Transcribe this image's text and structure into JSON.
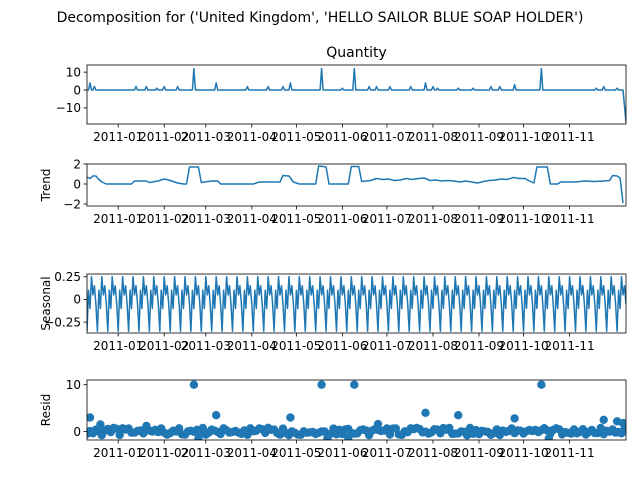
{
  "chart_data": {
    "type": "line",
    "title": "Decomposition for ('United Kingdom', 'HELLO SAILOR BLUE SOAP HOLDER')",
    "x_range": [
      "2010-12-11",
      "2011-12-09"
    ],
    "x_ticks": [
      "2011-01",
      "2011-02",
      "2011-03",
      "2011-04",
      "2011-05",
      "2011-06",
      "2011-07",
      "2011-08",
      "2011-09",
      "2011-10",
      "2011-11"
    ],
    "panels": [
      {
        "name": "quantity",
        "subtitle": "Quantity",
        "ylabel": "",
        "kind": "line",
        "ylim": [
          -19,
          14
        ],
        "yticks": [
          10,
          0,
          -10
        ],
        "baseline": 0,
        "spikes": [
          {
            "date": "2010-12-13",
            "value": 4
          },
          {
            "date": "2010-12-16",
            "value": 2
          },
          {
            "date": "2011-01-13",
            "value": 2
          },
          {
            "date": "2011-01-20",
            "value": 2
          },
          {
            "date": "2011-01-27",
            "value": 1
          },
          {
            "date": "2011-02-01",
            "value": 2
          },
          {
            "date": "2011-02-10",
            "value": 2
          },
          {
            "date": "2011-02-21",
            "value": 12
          },
          {
            "date": "2011-03-08",
            "value": 4
          },
          {
            "date": "2011-03-29",
            "value": 2
          },
          {
            "date": "2011-04-12",
            "value": 2
          },
          {
            "date": "2011-04-22",
            "value": 2
          },
          {
            "date": "2011-04-27",
            "value": 4
          },
          {
            "date": "2011-05-18",
            "value": 12
          },
          {
            "date": "2011-06-01",
            "value": 1
          },
          {
            "date": "2011-06-09",
            "value": 12
          },
          {
            "date": "2011-06-19",
            "value": 2
          },
          {
            "date": "2011-06-24",
            "value": 2
          },
          {
            "date": "2011-07-03",
            "value": 2
          },
          {
            "date": "2011-07-17",
            "value": 2
          },
          {
            "date": "2011-07-27",
            "value": 4
          },
          {
            "date": "2011-08-01",
            "value": 2
          },
          {
            "date": "2011-08-04",
            "value": 1
          },
          {
            "date": "2011-08-18",
            "value": 1
          },
          {
            "date": "2011-08-28",
            "value": 1
          },
          {
            "date": "2011-09-09",
            "value": 2
          },
          {
            "date": "2011-09-15",
            "value": 2
          },
          {
            "date": "2011-09-25",
            "value": 3
          },
          {
            "date": "2011-10-13",
            "value": 12
          },
          {
            "date": "2011-11-19",
            "value": 1
          },
          {
            "date": "2011-11-24",
            "value": 2
          },
          {
            "date": "2011-12-03",
            "value": 1
          }
        ],
        "end_value": -18
      },
      {
        "name": "trend",
        "subtitle": "",
        "ylabel": "Trend",
        "kind": "line",
        "ylim": [
          -2.2,
          2.0
        ],
        "yticks": [
          2,
          0,
          -2
        ],
        "points": [
          [
            "2010-12-11",
            0.7
          ],
          [
            "2010-12-13",
            0.55
          ],
          [
            "2010-12-15",
            0.8
          ],
          [
            "2010-12-17",
            0.8
          ],
          [
            "2010-12-19",
            0.45
          ],
          [
            "2010-12-21",
            0.2
          ],
          [
            "2010-12-24",
            0.0
          ],
          [
            "2011-01-10",
            0.0
          ],
          [
            "2011-01-12",
            0.3
          ],
          [
            "2011-01-20",
            0.3
          ],
          [
            "2011-01-22",
            0.15
          ],
          [
            "2011-01-26",
            0.25
          ],
          [
            "2011-01-28",
            0.3
          ],
          [
            "2011-02-01",
            0.5
          ],
          [
            "2011-02-04",
            0.4
          ],
          [
            "2011-02-07",
            0.25
          ],
          [
            "2011-02-10",
            0.1
          ],
          [
            "2011-02-14",
            0.0
          ],
          [
            "2011-02-16",
            0.0
          ],
          [
            "2011-02-18",
            1.7
          ],
          [
            "2011-02-24",
            1.7
          ],
          [
            "2011-02-26",
            0.15
          ],
          [
            "2011-03-05",
            0.3
          ],
          [
            "2011-03-09",
            0.3
          ],
          [
            "2011-03-11",
            0.0
          ],
          [
            "2011-04-02",
            0.0
          ],
          [
            "2011-04-06",
            0.2
          ],
          [
            "2011-04-14",
            0.2
          ],
          [
            "2011-04-20",
            0.2
          ],
          [
            "2011-04-22",
            0.85
          ],
          [
            "2011-04-26",
            0.8
          ],
          [
            "2011-04-29",
            0.2
          ],
          [
            "2011-05-03",
            0.0
          ],
          [
            "2011-05-14",
            0.0
          ],
          [
            "2011-05-16",
            1.8
          ],
          [
            "2011-05-19",
            1.75
          ],
          [
            "2011-05-21",
            1.7
          ],
          [
            "2011-05-23",
            0.0
          ],
          [
            "2011-06-01",
            0.0
          ],
          [
            "2011-06-05",
            0.0
          ],
          [
            "2011-06-07",
            1.75
          ],
          [
            "2011-06-12",
            1.75
          ],
          [
            "2011-06-14",
            0.25
          ],
          [
            "2011-06-20",
            0.35
          ],
          [
            "2011-06-24",
            0.55
          ],
          [
            "2011-06-28",
            0.45
          ],
          [
            "2011-07-02",
            0.5
          ],
          [
            "2011-07-06",
            0.35
          ],
          [
            "2011-07-10",
            0.4
          ],
          [
            "2011-07-14",
            0.55
          ],
          [
            "2011-07-18",
            0.45
          ],
          [
            "2011-07-22",
            0.55
          ],
          [
            "2011-07-26",
            0.6
          ],
          [
            "2011-07-30",
            0.35
          ],
          [
            "2011-08-03",
            0.4
          ],
          [
            "2011-08-07",
            0.3
          ],
          [
            "2011-08-11",
            0.35
          ],
          [
            "2011-08-15",
            0.3
          ],
          [
            "2011-08-19",
            0.2
          ],
          [
            "2011-08-23",
            0.3
          ],
          [
            "2011-08-27",
            0.2
          ],
          [
            "2011-08-31",
            0.1
          ],
          [
            "2011-09-04",
            0.25
          ],
          [
            "2011-09-08",
            0.35
          ],
          [
            "2011-09-12",
            0.4
          ],
          [
            "2011-09-16",
            0.5
          ],
          [
            "2011-09-20",
            0.45
          ],
          [
            "2011-09-24",
            0.65
          ],
          [
            "2011-09-28",
            0.55
          ],
          [
            "2011-10-02",
            0.55
          ],
          [
            "2011-10-05",
            0.3
          ],
          [
            "2011-10-08",
            0.1
          ],
          [
            "2011-10-10",
            1.7
          ],
          [
            "2011-10-17",
            1.7
          ],
          [
            "2011-10-19",
            0.0
          ],
          [
            "2011-10-24",
            0.0
          ],
          [
            "2011-10-26",
            0.2
          ],
          [
            "2011-11-05",
            0.2
          ],
          [
            "2011-11-11",
            0.3
          ],
          [
            "2011-11-18",
            0.25
          ],
          [
            "2011-11-24",
            0.3
          ],
          [
            "2011-11-28",
            0.35
          ],
          [
            "2011-11-30",
            0.85
          ],
          [
            "2011-12-03",
            0.8
          ],
          [
            "2011-12-05",
            0.6
          ],
          [
            "2011-12-07",
            -1.9
          ]
        ]
      },
      {
        "name": "seasonal",
        "subtitle": "",
        "ylabel": "Seasonal",
        "kind": "line",
        "ylim": [
          -0.37,
          0.28
        ],
        "yticks": [
          0.25,
          0.0,
          -0.25
        ],
        "period_days": 7,
        "start_date": "2010-12-11",
        "cycle": [
          -0.35,
          0.1,
          -0.1,
          0.25,
          0.05,
          0.15,
          -0.05
        ]
      },
      {
        "name": "resid",
        "subtitle": "",
        "ylabel": "Resid",
        "kind": "scatter",
        "ylim": [
          -1.8,
          11
        ],
        "yticks": [
          10,
          0
        ],
        "outliers": [
          [
            "2010-12-13",
            3.0
          ],
          [
            "2011-02-21",
            10.0
          ],
          [
            "2011-03-08",
            3.5
          ],
          [
            "2011-04-27",
            3.0
          ],
          [
            "2011-05-18",
            10.0
          ],
          [
            "2011-06-09",
            10.0
          ],
          [
            "2011-07-27",
            4.0
          ],
          [
            "2011-08-18",
            3.5
          ],
          [
            "2011-09-25",
            2.8
          ],
          [
            "2011-10-13",
            10.0
          ],
          [
            "2011-11-24",
            2.5
          ],
          [
            "2011-12-03",
            2.2
          ],
          [
            "2011-12-07",
            1.8
          ],
          [
            "2011-02-24",
            -1.5
          ],
          [
            "2011-05-22",
            -1.4
          ],
          [
            "2011-06-05",
            -1.3
          ],
          [
            "2011-10-18",
            -1.5
          ],
          [
            "2010-12-20",
            1.5
          ],
          [
            "2011-06-25",
            1.6
          ],
          [
            "2011-01-20",
            1.2
          ]
        ]
      }
    ]
  }
}
